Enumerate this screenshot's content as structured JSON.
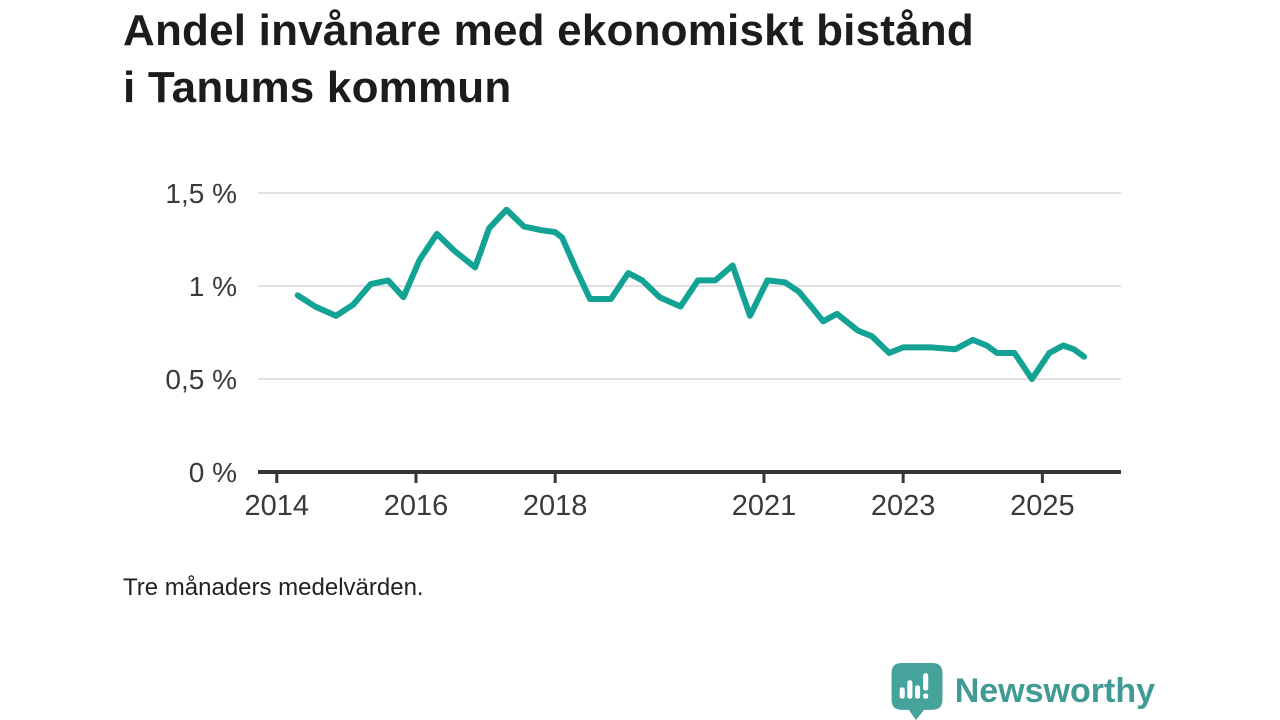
{
  "header": {
    "title": "Andel invånare med ekonomiskt bistånd i Tanums kommun"
  },
  "chart_data": {
    "type": "line",
    "title": "Andel invånare med ekonomiskt bistånd i Tanums kommun",
    "note": "Tre månaders medelvärden.",
    "unit": "%",
    "grid": true,
    "legend": "none",
    "xlim": [
      2013.73,
      2026.13
    ],
    "ylim": [
      0,
      1.65
    ],
    "y_ticks": [
      {
        "label": "1,5 %",
        "value": 1.5
      },
      {
        "label": "1 %",
        "value": 1.0
      },
      {
        "label": "0,5 %",
        "value": 0.5
      },
      {
        "label": "0 %",
        "value": 0.0
      }
    ],
    "x_ticks": [
      {
        "label": "2014",
        "year": 2014
      },
      {
        "label": "2016",
        "year": 2016
      },
      {
        "label": "2018",
        "year": 2018
      },
      {
        "label": "2021",
        "year": 2021
      },
      {
        "label": "2023",
        "year": 2023
      },
      {
        "label": "2025",
        "year": 2025
      }
    ],
    "series": [
      {
        "name": "Andel invånare med ekonomiskt bistånd",
        "points": [
          [
            2014.3,
            0.95
          ],
          [
            2014.55,
            0.89
          ],
          [
            2014.85,
            0.84
          ],
          [
            2015.1,
            0.9
          ],
          [
            2015.35,
            1.01
          ],
          [
            2015.6,
            1.03
          ],
          [
            2015.82,
            0.94
          ],
          [
            2016.05,
            1.14
          ],
          [
            2016.3,
            1.28
          ],
          [
            2016.55,
            1.19
          ],
          [
            2016.85,
            1.1
          ],
          [
            2017.05,
            1.31
          ],
          [
            2017.3,
            1.41
          ],
          [
            2017.55,
            1.32
          ],
          [
            2017.8,
            1.3
          ],
          [
            2018.0,
            1.29
          ],
          [
            2018.1,
            1.26
          ],
          [
            2018.3,
            1.09
          ],
          [
            2018.5,
            0.93
          ],
          [
            2018.8,
            0.93
          ],
          [
            2019.05,
            1.07
          ],
          [
            2019.25,
            1.03
          ],
          [
            2019.5,
            0.94
          ],
          [
            2019.8,
            0.89
          ],
          [
            2020.05,
            1.03
          ],
          [
            2020.3,
            1.03
          ],
          [
            2020.55,
            1.11
          ],
          [
            2020.8,
            0.84
          ],
          [
            2021.05,
            1.03
          ],
          [
            2021.3,
            1.02
          ],
          [
            2021.5,
            0.97
          ],
          [
            2021.7,
            0.88
          ],
          [
            2021.85,
            0.81
          ],
          [
            2022.05,
            0.85
          ],
          [
            2022.35,
            0.76
          ],
          [
            2022.55,
            0.73
          ],
          [
            2022.8,
            0.64
          ],
          [
            2023.0,
            0.67
          ],
          [
            2023.4,
            0.67
          ],
          [
            2023.75,
            0.66
          ],
          [
            2024.0,
            0.71
          ],
          [
            2024.2,
            0.68
          ],
          [
            2024.35,
            0.64
          ],
          [
            2024.6,
            0.64
          ],
          [
            2024.85,
            0.5
          ],
          [
            2025.1,
            0.64
          ],
          [
            2025.3,
            0.68
          ],
          [
            2025.45,
            0.66
          ],
          [
            2025.6,
            0.62
          ]
        ]
      }
    ],
    "colors": {
      "line": "#13a394",
      "grid": "#e1e1e1",
      "axis": "#363636",
      "tick_label": "#3a3a3a"
    }
  },
  "branding": {
    "logo_text": "Newsworthy",
    "logo_color": "#3f9b94",
    "logo_mark_color": "#46a39b"
  }
}
